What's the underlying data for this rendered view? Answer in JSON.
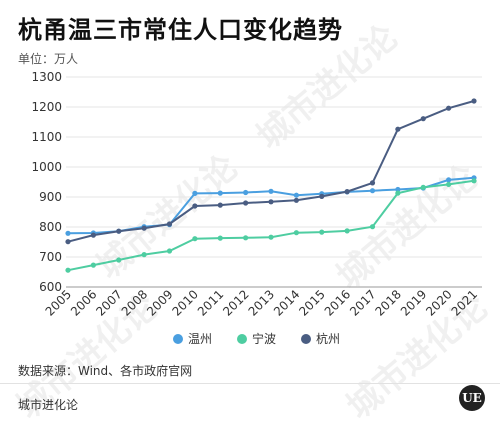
{
  "header": {
    "title": "杭甬温三市常住人口变化趋势",
    "unit": "单位：万人"
  },
  "footer": {
    "source": "数据来源：Wind、各市政府官网",
    "brand": "城市进化论",
    "logo_text": "UE"
  },
  "watermark": {
    "text": "城市进化论"
  },
  "chart_data": {
    "type": "line",
    "title": "杭甬温三市常住人口变化趋势",
    "xlabel": "",
    "ylabel": "单位：万人",
    "x": [
      "2005",
      "2006",
      "2007",
      "2008",
      "2009",
      "2010",
      "2011",
      "2012",
      "2013",
      "2014",
      "2015",
      "2016",
      "2017",
      "2018",
      "2019",
      "2020",
      "2021"
    ],
    "ylim": [
      600,
      1300
    ],
    "yticks": [
      600,
      700,
      800,
      900,
      1000,
      1100,
      1200,
      1300
    ],
    "grid": "horizontal",
    "legend": "bottom",
    "series": [
      {
        "name": "温州",
        "color": "#4a9fe0",
        "values": [
          779,
          780,
          786,
          801,
          808,
          912,
          913,
          915,
          919,
          906,
          911,
          917,
          921,
          925,
          930,
          957,
          964
        ]
      },
      {
        "name": "宁波",
        "color": "#4ecda1",
        "values": [
          656,
          673,
          690,
          708,
          720,
          761,
          763,
          764,
          766,
          781,
          783,
          787,
          801,
          913,
          932,
          942,
          954
        ]
      },
      {
        "name": "杭州",
        "color": "#4a5d82",
        "values": [
          751,
          773,
          786,
          796,
          810,
          870,
          873,
          880,
          884,
          889,
          902,
          918,
          947,
          1126,
          1161,
          1196,
          1220
        ]
      }
    ]
  }
}
